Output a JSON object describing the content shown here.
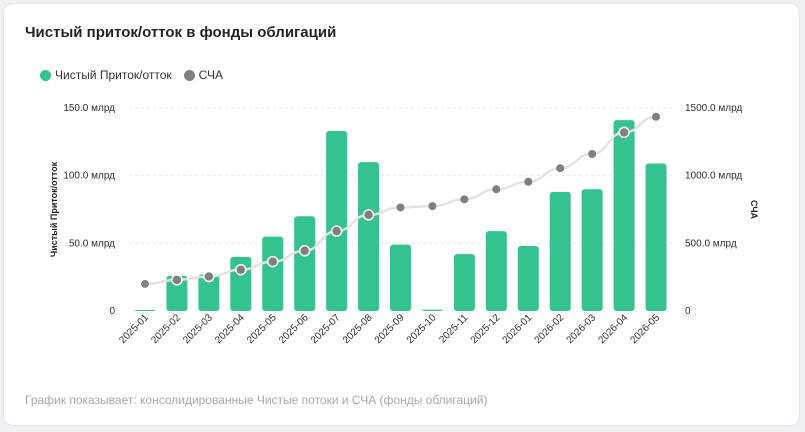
{
  "title": "Чистый приток/отток в фонды облигаций",
  "footnote": "График показывает: консолидированные Чистые потоки и СЧА (фонды облигаций)",
  "colors": {
    "bar": "#34c38f",
    "line": "#e3e3e3",
    "point": "#808080",
    "point_stroke": "#ffffff"
  },
  "chart_data": {
    "type": "bar",
    "categories": [
      "2025-01",
      "2025-02",
      "2025-03",
      "2025-04",
      "2025-05",
      "2025-06",
      "2025-07",
      "2025-08",
      "2025-09",
      "2025-10",
      "2025-11",
      "2025-12",
      "2026-01",
      "2026-02",
      "2026-03",
      "2026-04",
      "2026-05"
    ],
    "series": [
      {
        "name": "Чистый Приток/отток",
        "type": "bar",
        "axis": "left",
        "values": [
          0,
          26,
          27,
          40,
          55,
          70,
          133,
          110,
          49,
          1,
          42,
          59,
          48,
          88,
          90,
          141,
          109
        ]
      },
      {
        "name": "СЧА",
        "type": "line",
        "axis": "right",
        "values": [
          200,
          230,
          255,
          305,
          365,
          445,
          590,
          710,
          765,
          775,
          825,
          900,
          955,
          1055,
          1160,
          1320,
          1435
        ]
      }
    ],
    "y_left": {
      "label": "Чистый Приток/отток",
      "range": [
        0,
        150
      ],
      "ticks": [
        {
          "value": 0,
          "label": "0"
        },
        {
          "value": 50,
          "label": "50.0 млрд"
        },
        {
          "value": 100,
          "label": "100.0 млрд"
        },
        {
          "value": 150,
          "label": "150.0 млрд"
        }
      ]
    },
    "y_right": {
      "label": "СЧА",
      "range": [
        0,
        1500
      ],
      "ticks": [
        {
          "value": 0,
          "label": "0"
        },
        {
          "value": 500,
          "label": "500.0 млрд"
        },
        {
          "value": 1000,
          "label": "1000.0 млрд"
        },
        {
          "value": 1500,
          "label": "1500.0 млрд"
        }
      ]
    },
    "grid": "horizontal-dashed",
    "legend_position": "top-left"
  }
}
